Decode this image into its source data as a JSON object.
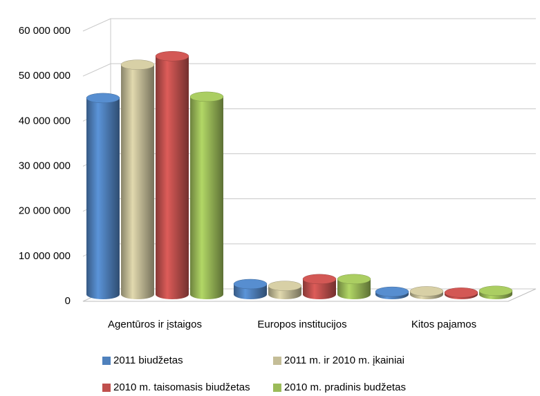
{
  "chart_data": {
    "type": "bar3d",
    "categories": [
      "Agentūros ir įstaigos",
      "Europos institucijos",
      "Kitos pajamos"
    ],
    "series": [
      {
        "name": "2011 biudžetas",
        "color": "#4f81bd",
        "values": [
          43600000,
          2300000,
          600000
        ]
      },
      {
        "name": "2011 m. ir 2010 m. įkainiai",
        "color": "#c4bd97",
        "values": [
          51000000,
          1900000,
          700000
        ]
      },
      {
        "name": "2010 m. taisomasis biudžetas",
        "color": "#c0504d",
        "values": [
          52900000,
          3400000,
          400000
        ]
      },
      {
        "name": "2010 m. pradinis budžetas",
        "color": "#9bbb59",
        "values": [
          43900000,
          3400000,
          800000
        ]
      }
    ],
    "ylim": [
      0,
      60000000
    ],
    "yticks": [
      {
        "value": 0,
        "label": "0"
      },
      {
        "value": 10000000,
        "label": "10 000 000"
      },
      {
        "value": 20000000,
        "label": "20 000 000"
      },
      {
        "value": 30000000,
        "label": "30 000 000"
      },
      {
        "value": 40000000,
        "label": "40 000 000"
      },
      {
        "value": 50000000,
        "label": "50 000 000"
      },
      {
        "value": 60000000,
        "label": "60 000 000"
      }
    ],
    "grid": true,
    "legend": "bottom"
  }
}
